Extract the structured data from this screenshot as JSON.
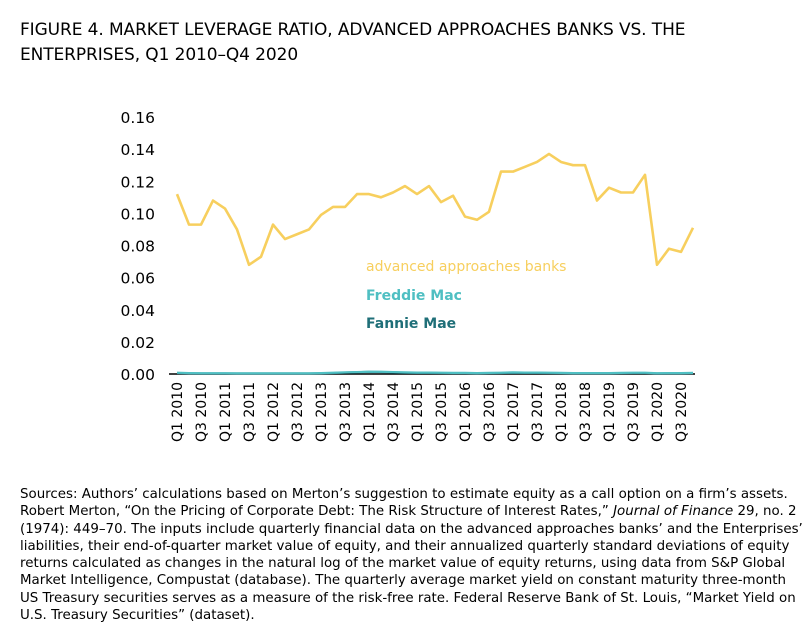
{
  "figure": {
    "title": "FIGURE 4. MARKET LEVERAGE RATIO, ADVANCED APPROACHES BANKS VS. THE ENTERPRISES, Q1 2010–Q4 2020"
  },
  "chart_data": {
    "type": "line",
    "title": "",
    "xlabel": "",
    "ylabel": "",
    "ylim": [
      0,
      0.16
    ],
    "yticks": [
      "0.00",
      "0.02",
      "0.04",
      "0.06",
      "0.08",
      "0.10",
      "0.12",
      "0.14",
      "0.16"
    ],
    "grid": false,
    "legend": "inline labels, center",
    "x": [
      "Q1 2010",
      "Q2 2010",
      "Q3 2010",
      "Q4 2010",
      "Q1 2011",
      "Q2 2011",
      "Q3 2011",
      "Q4 2011",
      "Q1 2012",
      "Q2 2012",
      "Q3 2012",
      "Q4 2012",
      "Q1 2013",
      "Q2 2013",
      "Q3 2013",
      "Q4 2013",
      "Q1 2014",
      "Q2 2014",
      "Q3 2014",
      "Q4 2014",
      "Q1 2015",
      "Q2 2015",
      "Q3 2015",
      "Q4 2015",
      "Q1 2016",
      "Q2 2016",
      "Q3 2016",
      "Q4 2016",
      "Q1 2017",
      "Q2 2017",
      "Q3 2017",
      "Q4 2017",
      "Q1 2018",
      "Q2 2018",
      "Q3 2018",
      "Q4 2018",
      "Q1 2019",
      "Q2 2019",
      "Q3 2019",
      "Q4 2019",
      "Q1 2020",
      "Q2 2020",
      "Q3 2020",
      "Q4 2020"
    ],
    "xticklabels": [
      "Q1 2010",
      "Q3 2010",
      "Q1 2011",
      "Q3 2011",
      "Q1 2012",
      "Q3 2012",
      "Q1 2013",
      "Q3 2013",
      "Q1 2014",
      "Q3 2014",
      "Q1 2015",
      "Q3 2015",
      "Q1 2016",
      "Q3 2016",
      "Q1 2017",
      "Q3 2017",
      "Q1 2018",
      "Q3 2018",
      "Q1 2019",
      "Q3 2019",
      "Q1 2020",
      "Q3 2020"
    ],
    "series": [
      {
        "name": "advanced approaches banks",
        "color": "#f7cf5e",
        "values": [
          0.112,
          0.093,
          0.093,
          0.108,
          0.103,
          0.09,
          0.068,
          0.073,
          0.093,
          0.084,
          0.087,
          0.09,
          0.099,
          0.104,
          0.104,
          0.112,
          0.112,
          0.11,
          0.113,
          0.117,
          0.112,
          0.117,
          0.107,
          0.111,
          0.098,
          0.096,
          0.101,
          0.126,
          0.126,
          0.129,
          0.132,
          0.137,
          0.132,
          0.13,
          0.13,
          0.108,
          0.116,
          0.113,
          0.113,
          0.124,
          0.068,
          0.078,
          0.076,
          0.091
        ]
      },
      {
        "name": "Freddie Mac",
        "color": "#4fbfc2",
        "values": [
          0.0008,
          0.0006,
          0.0005,
          0.0005,
          0.0005,
          0.0004,
          0.0004,
          0.0004,
          0.0004,
          0.0004,
          0.0004,
          0.0004,
          0.0006,
          0.0008,
          0.001,
          0.0012,
          0.0014,
          0.0014,
          0.0012,
          0.001,
          0.0009,
          0.0009,
          0.0008,
          0.0007,
          0.0007,
          0.0006,
          0.0007,
          0.0008,
          0.001,
          0.0009,
          0.0009,
          0.0008,
          0.0007,
          0.0006,
          0.0006,
          0.0006,
          0.0006,
          0.0007,
          0.0008,
          0.0008,
          0.0005,
          0.0006,
          0.0006,
          0.0007
        ]
      },
      {
        "name": "Fannie Mae",
        "color": "#1f6f78",
        "values": [
          0.0006,
          0.0004,
          0.0003,
          0.0003,
          0.0003,
          0.0003,
          0.0003,
          0.0003,
          0.0003,
          0.0003,
          0.0003,
          0.0003,
          0.0004,
          0.0006,
          0.0009,
          0.0011,
          0.0013,
          0.0012,
          0.001,
          0.0008,
          0.0007,
          0.0007,
          0.0006,
          0.0005,
          0.0005,
          0.0004,
          0.0005,
          0.0006,
          0.0008,
          0.0007,
          0.0007,
          0.0006,
          0.0005,
          0.0004,
          0.0004,
          0.0004,
          0.0004,
          0.0005,
          0.0006,
          0.0006,
          0.0003,
          0.0004,
          0.0004,
          0.0005
        ]
      }
    ]
  },
  "source_note": {
    "part1": "Sources: Authors’ calculations based on Merton’s suggestion to estimate equity as a call option on a firm’s assets. Robert Merton, “On the Pricing of Corporate Debt: The Risk Structure of Interest Rates,” ",
    "journal": "Journal of Finance",
    "part2": " 29, no. 2 (1974): 449–70. The inputs include quarterly financial data on the advanced approaches banks’ and the Enterprises’ liabilities, their end-of-quarter market value of equity, and their annualized quarterly standard deviations of equity returns calculated as changes in the natural log of the market value of equity returns, using data from S&P Global Market Intelligence, Compustat (database). The quarterly average market yield on constant maturity three-month US Treasury securities serves as a measure of the risk-free rate. Federal Reserve Bank of St. Louis, “Market Yield on U.S. Treasury Securities” (dataset)."
  }
}
